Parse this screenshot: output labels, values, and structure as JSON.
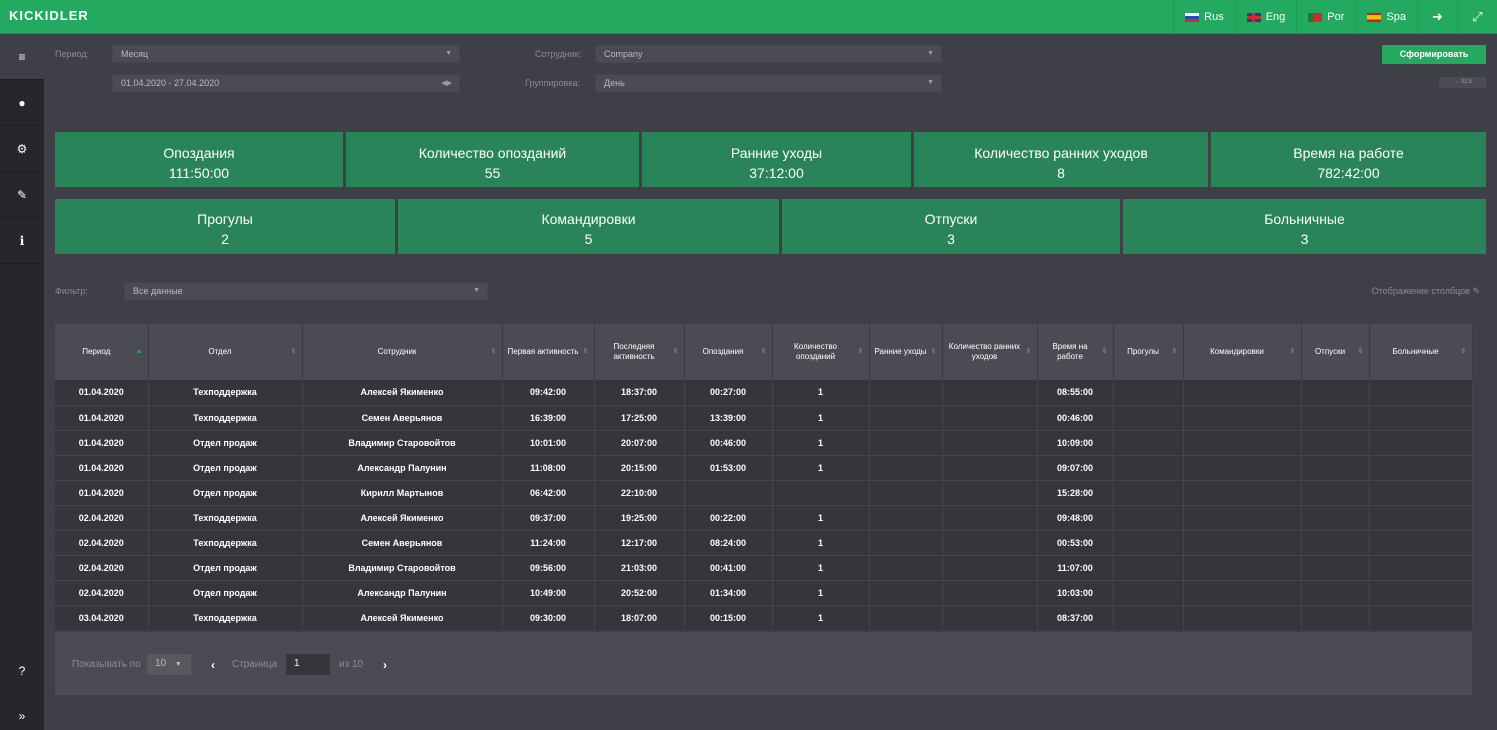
{
  "app": {
    "logo": "KICKIDLER"
  },
  "topbar": {
    "languages": [
      {
        "label": "Rus",
        "flag": "ru"
      },
      {
        "label": "Eng",
        "flag": "en"
      },
      {
        "label": "Por",
        "flag": "pt"
      },
      {
        "label": "Spa",
        "flag": "es"
      }
    ],
    "logout_icon": "logout-icon",
    "fullscreen_icon": "fullscreen-icon"
  },
  "sidebar": {
    "items": [
      {
        "icon": "menu-icon",
        "glyph": "≡"
      },
      {
        "icon": "user-icon",
        "glyph": "●"
      },
      {
        "icon": "gears-icon",
        "glyph": "⚙"
      },
      {
        "icon": "wrench-icon",
        "glyph": "✎"
      },
      {
        "icon": "info-icon",
        "glyph": "i"
      }
    ],
    "help_glyph": "?",
    "expand_glyph": "»"
  },
  "form": {
    "period_label": "Период:",
    "period_value": "Месяц",
    "date_range": "01.04.2020 - 27.04.2020",
    "employee_label": "Сотрудник:",
    "employee_value": "Company",
    "grouping_label": "Группировка:",
    "grouping_value": "День",
    "generate_button": "Сформировать",
    "xls_button": "→ XLS"
  },
  "stats_row1": [
    {
      "title": "Опоздания",
      "value": "111:50:00"
    },
    {
      "title": "Количество опозданий",
      "value": "55"
    },
    {
      "title": "Ранние уходы",
      "value": "37:12:00"
    },
    {
      "title": "Количество ранних уходов",
      "value": "8"
    },
    {
      "title": "Время на работе",
      "value": "782:42:00"
    }
  ],
  "stats_row2": [
    {
      "title": "Прогулы",
      "value": "2"
    },
    {
      "title": "Командировки",
      "value": "5"
    },
    {
      "title": "Отпуски",
      "value": "3"
    },
    {
      "title": "Больничные",
      "value": "3"
    }
  ],
  "filter": {
    "label": "Фильтр:",
    "value": "Все данные",
    "columns_toggle": "Отображение столбцов"
  },
  "table": {
    "headers": [
      "Период",
      "Отдел",
      "Сотрудник",
      "Первая активность",
      "Последняя активность",
      "Опоздания",
      "Количество опозданий",
      "Ранние уходы",
      "Количество ранних уходов",
      "Время на работе",
      "Прогулы",
      "Командировки",
      "Отпуски",
      "Больничные"
    ],
    "rows": [
      [
        "01.04.2020",
        "Техподдержка",
        "Алексей Якименко",
        "09:42:00",
        "18:37:00",
        "00:27:00",
        "1",
        "",
        "",
        "08:55:00",
        "",
        "",
        "",
        ""
      ],
      [
        "01.04.2020",
        "Техподдержка",
        "Семен Аверьянов",
        "16:39:00",
        "17:25:00",
        "13:39:00",
        "1",
        "",
        "",
        "00:46:00",
        "",
        "",
        "",
        ""
      ],
      [
        "01.04.2020",
        "Отдел продаж",
        "Владимир Старовойтов",
        "10:01:00",
        "20:07:00",
        "00:46:00",
        "1",
        "",
        "",
        "10:09:00",
        "",
        "",
        "",
        ""
      ],
      [
        "01.04.2020",
        "Отдел продаж",
        "Александр Палунин",
        "11:08:00",
        "20:15:00",
        "01:53:00",
        "1",
        "",
        "",
        "09:07:00",
        "",
        "",
        "",
        ""
      ],
      [
        "01.04.2020",
        "Отдел продаж",
        "Кирилл Мартынов",
        "06:42:00",
        "22:10:00",
        "",
        "",
        "",
        "",
        "15:28:00",
        "",
        "",
        "",
        ""
      ],
      [
        "02.04.2020",
        "Техподдержка",
        "Алексей Якименко",
        "09:37:00",
        "19:25:00",
        "00:22:00",
        "1",
        "",
        "",
        "09:48:00",
        "",
        "",
        "",
        ""
      ],
      [
        "02.04.2020",
        "Техподдержка",
        "Семен Аверьянов",
        "11:24:00",
        "12:17:00",
        "08:24:00",
        "1",
        "",
        "",
        "00:53:00",
        "",
        "",
        "",
        ""
      ],
      [
        "02.04.2020",
        "Отдел продаж",
        "Владимир Старовойтов",
        "09:56:00",
        "21:03:00",
        "00:41:00",
        "1",
        "",
        "",
        "11:07:00",
        "",
        "",
        "",
        ""
      ],
      [
        "02.04.2020",
        "Отдел продаж",
        "Александр Палунин",
        "10:49:00",
        "20:52:00",
        "01:34:00",
        "1",
        "",
        "",
        "10:03:00",
        "",
        "",
        "",
        ""
      ],
      [
        "03.04.2020",
        "Техподдержка",
        "Алексей Якименко",
        "09:30:00",
        "18:07:00",
        "00:15:00",
        "1",
        "",
        "",
        "08:37:00",
        "",
        "",
        "",
        ""
      ]
    ]
  },
  "pager": {
    "show_label": "Показывать по",
    "page_size": "10",
    "page_label": "Страница",
    "page": "1",
    "of_label": "из",
    "total_pages": "10"
  }
}
